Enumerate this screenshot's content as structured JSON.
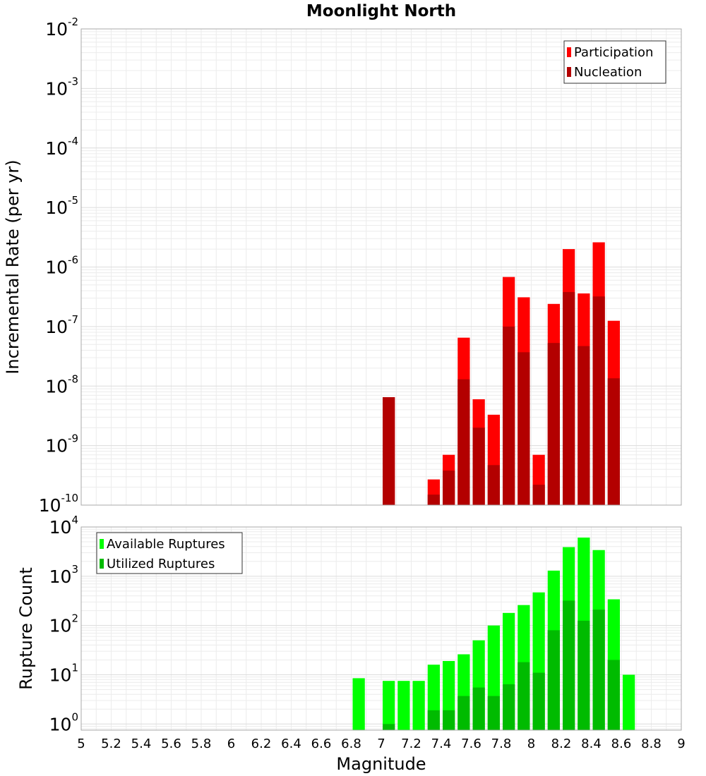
{
  "chart_data": [
    {
      "type": "bar",
      "title": "Moonlight North",
      "ylabel": "Incremental Rate (per yr)",
      "xlabel": "",
      "xlim": [
        5,
        9
      ],
      "ylim": [
        1e-10,
        0.01
      ],
      "yscale": "log",
      "grid": true,
      "legend_position": "top-right",
      "y_ticks": [
        {
          "base": "10",
          "exp": "-2"
        },
        {
          "base": "10",
          "exp": "-3"
        },
        {
          "base": "10",
          "exp": "-4"
        },
        {
          "base": "10",
          "exp": "-5"
        },
        {
          "base": "10",
          "exp": "-6"
        },
        {
          "base": "10",
          "exp": "-7"
        },
        {
          "base": "10",
          "exp": "-8"
        },
        {
          "base": "10",
          "exp": "-9"
        },
        {
          "base": "10",
          "exp": "-10"
        }
      ],
      "series": [
        {
          "name": "Participation",
          "color": "#ff0000",
          "points": [
            {
              "x": 7.05,
              "y": 6.5e-09
            },
            {
              "x": 7.35,
              "y": 2.7e-10
            },
            {
              "x": 7.45,
              "y": 7e-10
            },
            {
              "x": 7.55,
              "y": 6.5e-08
            },
            {
              "x": 7.65,
              "y": 6e-09
            },
            {
              "x": 7.75,
              "y": 3.3e-09
            },
            {
              "x": 7.85,
              "y": 6.8e-07
            },
            {
              "x": 7.95,
              "y": 3.1e-07
            },
            {
              "x": 8.05,
              "y": 7e-10
            },
            {
              "x": 8.15,
              "y": 2.4e-07
            },
            {
              "x": 8.25,
              "y": 2e-06
            },
            {
              "x": 8.35,
              "y": 3.6e-07
            },
            {
              "x": 8.45,
              "y": 2.6e-06
            },
            {
              "x": 8.55,
              "y": 1.25e-07
            }
          ]
        },
        {
          "name": "Nucleation",
          "color": "#b30000",
          "points": [
            {
              "x": 7.05,
              "y": 6.5e-09
            },
            {
              "x": 7.35,
              "y": 1.5e-10
            },
            {
              "x": 7.45,
              "y": 3.8e-10
            },
            {
              "x": 7.55,
              "y": 1.3e-08
            },
            {
              "x": 7.65,
              "y": 2e-09
            },
            {
              "x": 7.75,
              "y": 4.7e-10
            },
            {
              "x": 7.85,
              "y": 1e-07
            },
            {
              "x": 7.95,
              "y": 3.7e-08
            },
            {
              "x": 8.05,
              "y": 2.2e-10
            },
            {
              "x": 8.15,
              "y": 5.3e-08
            },
            {
              "x": 8.25,
              "y": 3.8e-07
            },
            {
              "x": 8.35,
              "y": 4.7e-08
            },
            {
              "x": 8.45,
              "y": 3.2e-07
            },
            {
              "x": 8.55,
              "y": 1.35e-08
            }
          ]
        }
      ]
    },
    {
      "type": "bar",
      "title": "",
      "ylabel": "Rupture Count",
      "xlabel": "Magnitude",
      "xlim": [
        5,
        9
      ],
      "ylim": [
        0.75,
        10000
      ],
      "yscale": "log",
      "grid": true,
      "legend_position": "top-left",
      "y_ticks": [
        {
          "base": "10",
          "exp": "4"
        },
        {
          "base": "10",
          "exp": "3"
        },
        {
          "base": "10",
          "exp": "2"
        },
        {
          "base": "10",
          "exp": "1"
        },
        {
          "base": "10",
          "exp": "0"
        }
      ],
      "x_ticks": [
        "5",
        "5.2",
        "5.4",
        "5.6",
        "5.8",
        "6",
        "6.2",
        "6.4",
        "6.6",
        "6.8",
        "7",
        "7.2",
        "7.4",
        "7.6",
        "7.8",
        "8",
        "8.2",
        "8.4",
        "8.6",
        "8.8",
        "9"
      ],
      "series": [
        {
          "name": "Available Ruptures",
          "color": "#00ff00",
          "points": [
            {
              "x": 6.85,
              "y": 8.5
            },
            {
              "x": 7.05,
              "y": 7.5
            },
            {
              "x": 7.15,
              "y": 7.5
            },
            {
              "x": 7.25,
              "y": 7.5
            },
            {
              "x": 7.35,
              "y": 16
            },
            {
              "x": 7.45,
              "y": 19
            },
            {
              "x": 7.55,
              "y": 26
            },
            {
              "x": 7.65,
              "y": 50
            },
            {
              "x": 7.75,
              "y": 100
            },
            {
              "x": 7.85,
              "y": 180
            },
            {
              "x": 7.95,
              "y": 260
            },
            {
              "x": 8.05,
              "y": 470
            },
            {
              "x": 8.15,
              "y": 1300
            },
            {
              "x": 8.25,
              "y": 3900
            },
            {
              "x": 8.35,
              "y": 6100
            },
            {
              "x": 8.45,
              "y": 3400
            },
            {
              "x": 8.55,
              "y": 340
            },
            {
              "x": 8.65,
              "y": 10
            }
          ]
        },
        {
          "name": "Utilized Ruptures",
          "color": "#00bb00",
          "points": [
            {
              "x": 7.05,
              "y": 1
            },
            {
              "x": 7.35,
              "y": 1.9
            },
            {
              "x": 7.45,
              "y": 1.9
            },
            {
              "x": 7.55,
              "y": 3.7
            },
            {
              "x": 7.65,
              "y": 5.5
            },
            {
              "x": 7.75,
              "y": 3.7
            },
            {
              "x": 7.85,
              "y": 6.4
            },
            {
              "x": 7.95,
              "y": 18
            },
            {
              "x": 8.05,
              "y": 11
            },
            {
              "x": 8.15,
              "y": 80
            },
            {
              "x": 8.25,
              "y": 320
            },
            {
              "x": 8.35,
              "y": 125
            },
            {
              "x": 8.45,
              "y": 210
            },
            {
              "x": 8.55,
              "y": 20
            }
          ]
        }
      ]
    }
  ]
}
